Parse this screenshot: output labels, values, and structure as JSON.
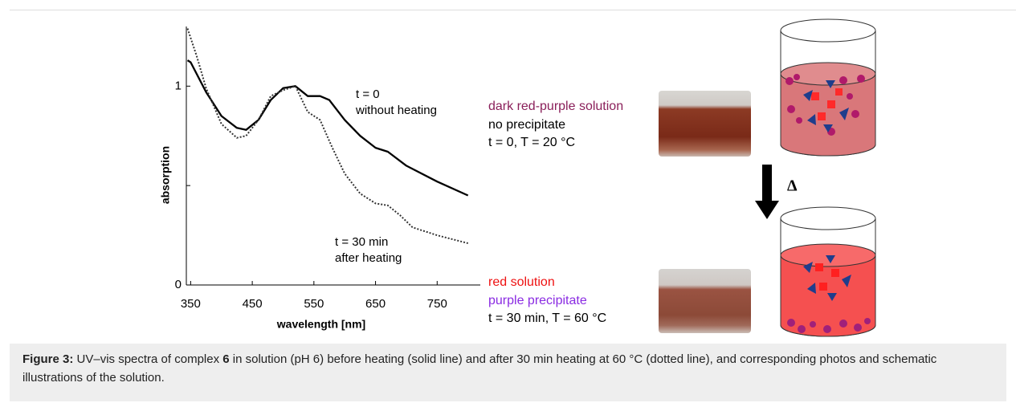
{
  "chart_data": {
    "type": "line",
    "xlabel": "wavelength [nm]",
    "ylabel": "absorption",
    "xlim": [
      343,
      820
    ],
    "ylim": [
      0,
      1.3
    ],
    "xticks": [
      350,
      450,
      550,
      650,
      750
    ],
    "yticks": [
      0,
      {
        "value": 0.5,
        "label": null
      },
      1
    ],
    "series": [
      {
        "style": "solid",
        "color": "#000000",
        "x": [
          345,
          350,
          375,
          400,
          425,
          440,
          460,
          480,
          500,
          520,
          540,
          560,
          575,
          600,
          625,
          650,
          670,
          700,
          750,
          800
        ],
        "values": [
          1.13,
          1.12,
          0.97,
          0.85,
          0.79,
          0.78,
          0.83,
          0.93,
          0.99,
          1.0,
          0.95,
          0.95,
          0.93,
          0.83,
          0.75,
          0.69,
          0.67,
          0.6,
          0.52,
          0.45
        ]
      },
      {
        "style": "dotted",
        "color": "#333333",
        "x": [
          345,
          360,
          375,
          400,
          425,
          440,
          460,
          480,
          500,
          520,
          540,
          560,
          580,
          600,
          625,
          650,
          670,
          690,
          710,
          750,
          800
        ],
        "values": [
          1.29,
          1.15,
          0.99,
          0.81,
          0.74,
          0.75,
          0.83,
          0.95,
          0.98,
          1.0,
          0.87,
          0.83,
          0.69,
          0.56,
          0.46,
          0.41,
          0.4,
          0.35,
          0.29,
          0.25,
          0.21
        ]
      }
    ],
    "annotations": [
      [
        "t = 0",
        "without heating"
      ],
      [
        "t = 30 min",
        "after heating"
      ]
    ]
  },
  "labels": {
    "before": {
      "state": "dark red-purple solution",
      "precipitate": "no precipitate",
      "conditions": "t = 0,  T = 20 °C"
    },
    "after": {
      "state": "red solution",
      "precipitate": "purple precipitate",
      "conditions": "t = 30 min,  T = 60 °C"
    },
    "arrow": "Δ"
  },
  "caption": {
    "label": "Figure 3:",
    "text_1": " UV–vis spectra of complex ",
    "compound": "6",
    "text_2": " in solution (pH 6) before heating (solid line) and after 30 min heating at 60 °C (dotted line), and corresponding photos and schematic illustrations of the solution."
  }
}
